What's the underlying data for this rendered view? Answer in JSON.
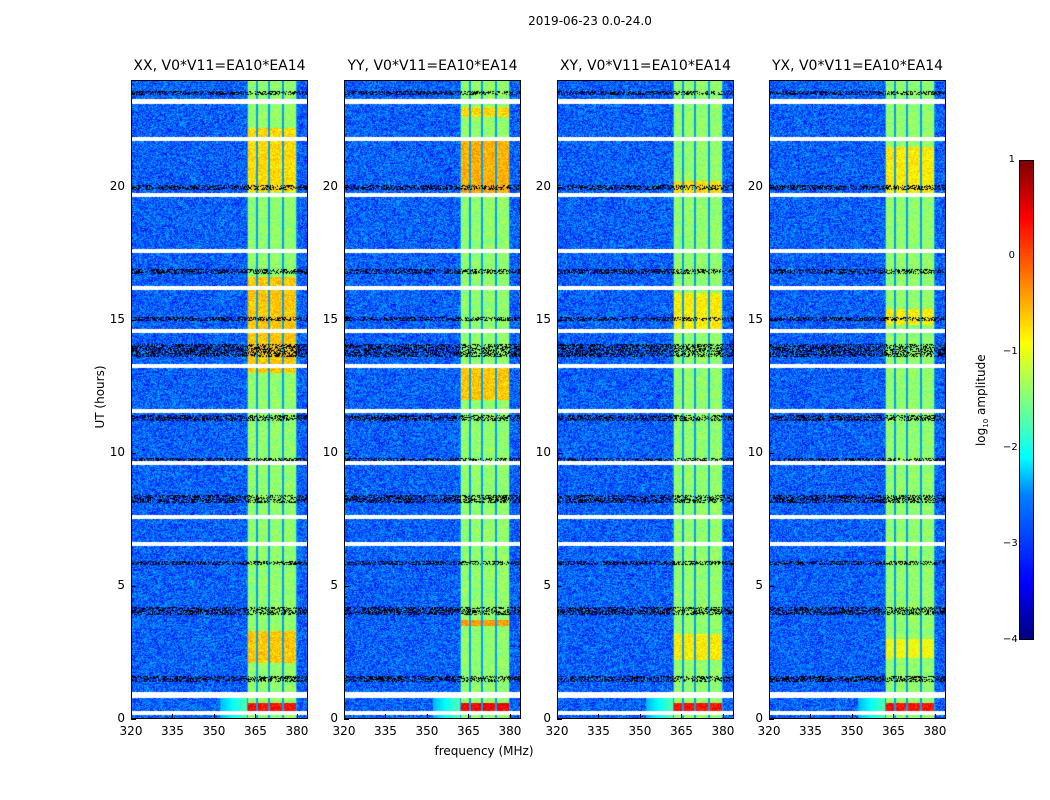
{
  "suptitle": "2019-06-23 0.0-24.0",
  "chart_data": {
    "type": "heatmap",
    "xlabel": "frequency (MHz)",
    "ylabel": "UT (hours)",
    "xlim": [
      320,
      384
    ],
    "ylim": [
      0,
      24
    ],
    "xticks": [
      "320",
      "335",
      "350",
      "365",
      "380"
    ],
    "xtick_values": [
      320,
      335,
      350,
      365,
      380
    ],
    "yticks": [
      "0",
      "5",
      "10",
      "15",
      "20"
    ],
    "ytick_values": [
      0,
      5,
      10,
      15,
      20
    ],
    "colorbar": {
      "label": "log10 amplitude",
      "label_main": "log",
      "label_sub": "10",
      "label_rest": " amplitude",
      "range": [
        -4,
        1
      ],
      "ticks": [
        "1",
        "0",
        "−1",
        "−2",
        "−3",
        "−4"
      ],
      "tick_values": [
        1,
        0,
        -1,
        -2,
        -3,
        -4
      ],
      "colormap": "jet"
    },
    "background_level": -2.9,
    "rfi_band_mhz": [
      362,
      380
    ],
    "rfi_band_level": -1.4,
    "rfi_dark_channels_mhz": [
      362,
      365.5,
      370,
      375,
      380
    ],
    "flagged_white_hours": [
      [
        23.1,
        23.3
      ],
      [
        21.7,
        21.85
      ],
      [
        19.6,
        19.75
      ],
      [
        17.5,
        17.65
      ],
      [
        16.1,
        16.25
      ],
      [
        14.5,
        14.65
      ],
      [
        13.2,
        13.35
      ],
      [
        11.5,
        11.65
      ],
      [
        9.55,
        9.7
      ],
      [
        7.5,
        7.65
      ],
      [
        6.5,
        6.65
      ],
      [
        0.8,
        1.0
      ],
      [
        0.15,
        0.3
      ]
    ],
    "dense_black_hours": [
      [
        23.45,
        23.6
      ],
      [
        19.85,
        20.05
      ],
      [
        16.7,
        16.9
      ],
      [
        14.95,
        15.1
      ],
      [
        13.6,
        14.1
      ],
      [
        11.2,
        11.4
      ],
      [
        9.6,
        9.8
      ],
      [
        8.1,
        8.4
      ],
      [
        5.8,
        5.95
      ],
      [
        3.9,
        4.2
      ],
      [
        1.4,
        1.6
      ]
    ],
    "panels": [
      {
        "title": "XX, V0*V11=EA10*EA14",
        "hot_hours": [
          [
            0.3,
            0.6,
            0.3
          ],
          [
            13.0,
            16.6,
            -0.6
          ],
          [
            2.1,
            3.3,
            -0.6
          ],
          [
            19.8,
            22.2,
            -0.7
          ]
        ]
      },
      {
        "title": "YY, V0*V11=EA10*EA14",
        "hot_hours": [
          [
            0.3,
            0.6,
            0.4
          ],
          [
            12.0,
            13.2,
            -0.6
          ],
          [
            19.7,
            21.8,
            -0.5
          ],
          [
            3.5,
            3.7,
            -0.4
          ],
          [
            22.6,
            23.0,
            -0.7
          ]
        ]
      },
      {
        "title": "XY, V0*V11=EA10*EA14",
        "hot_hours": [
          [
            0.3,
            0.6,
            0.3
          ],
          [
            14.5,
            16.0,
            -0.8
          ],
          [
            19.7,
            20.2,
            -0.7
          ],
          [
            2.2,
            3.2,
            -0.8
          ]
        ]
      },
      {
        "title": "YX, V0*V11=EA10*EA14",
        "hot_hours": [
          [
            0.3,
            0.6,
            0.3
          ],
          [
            14.8,
            15.4,
            -0.8
          ],
          [
            19.7,
            21.5,
            -0.8
          ],
          [
            2.3,
            3.0,
            -0.9
          ]
        ]
      }
    ]
  }
}
